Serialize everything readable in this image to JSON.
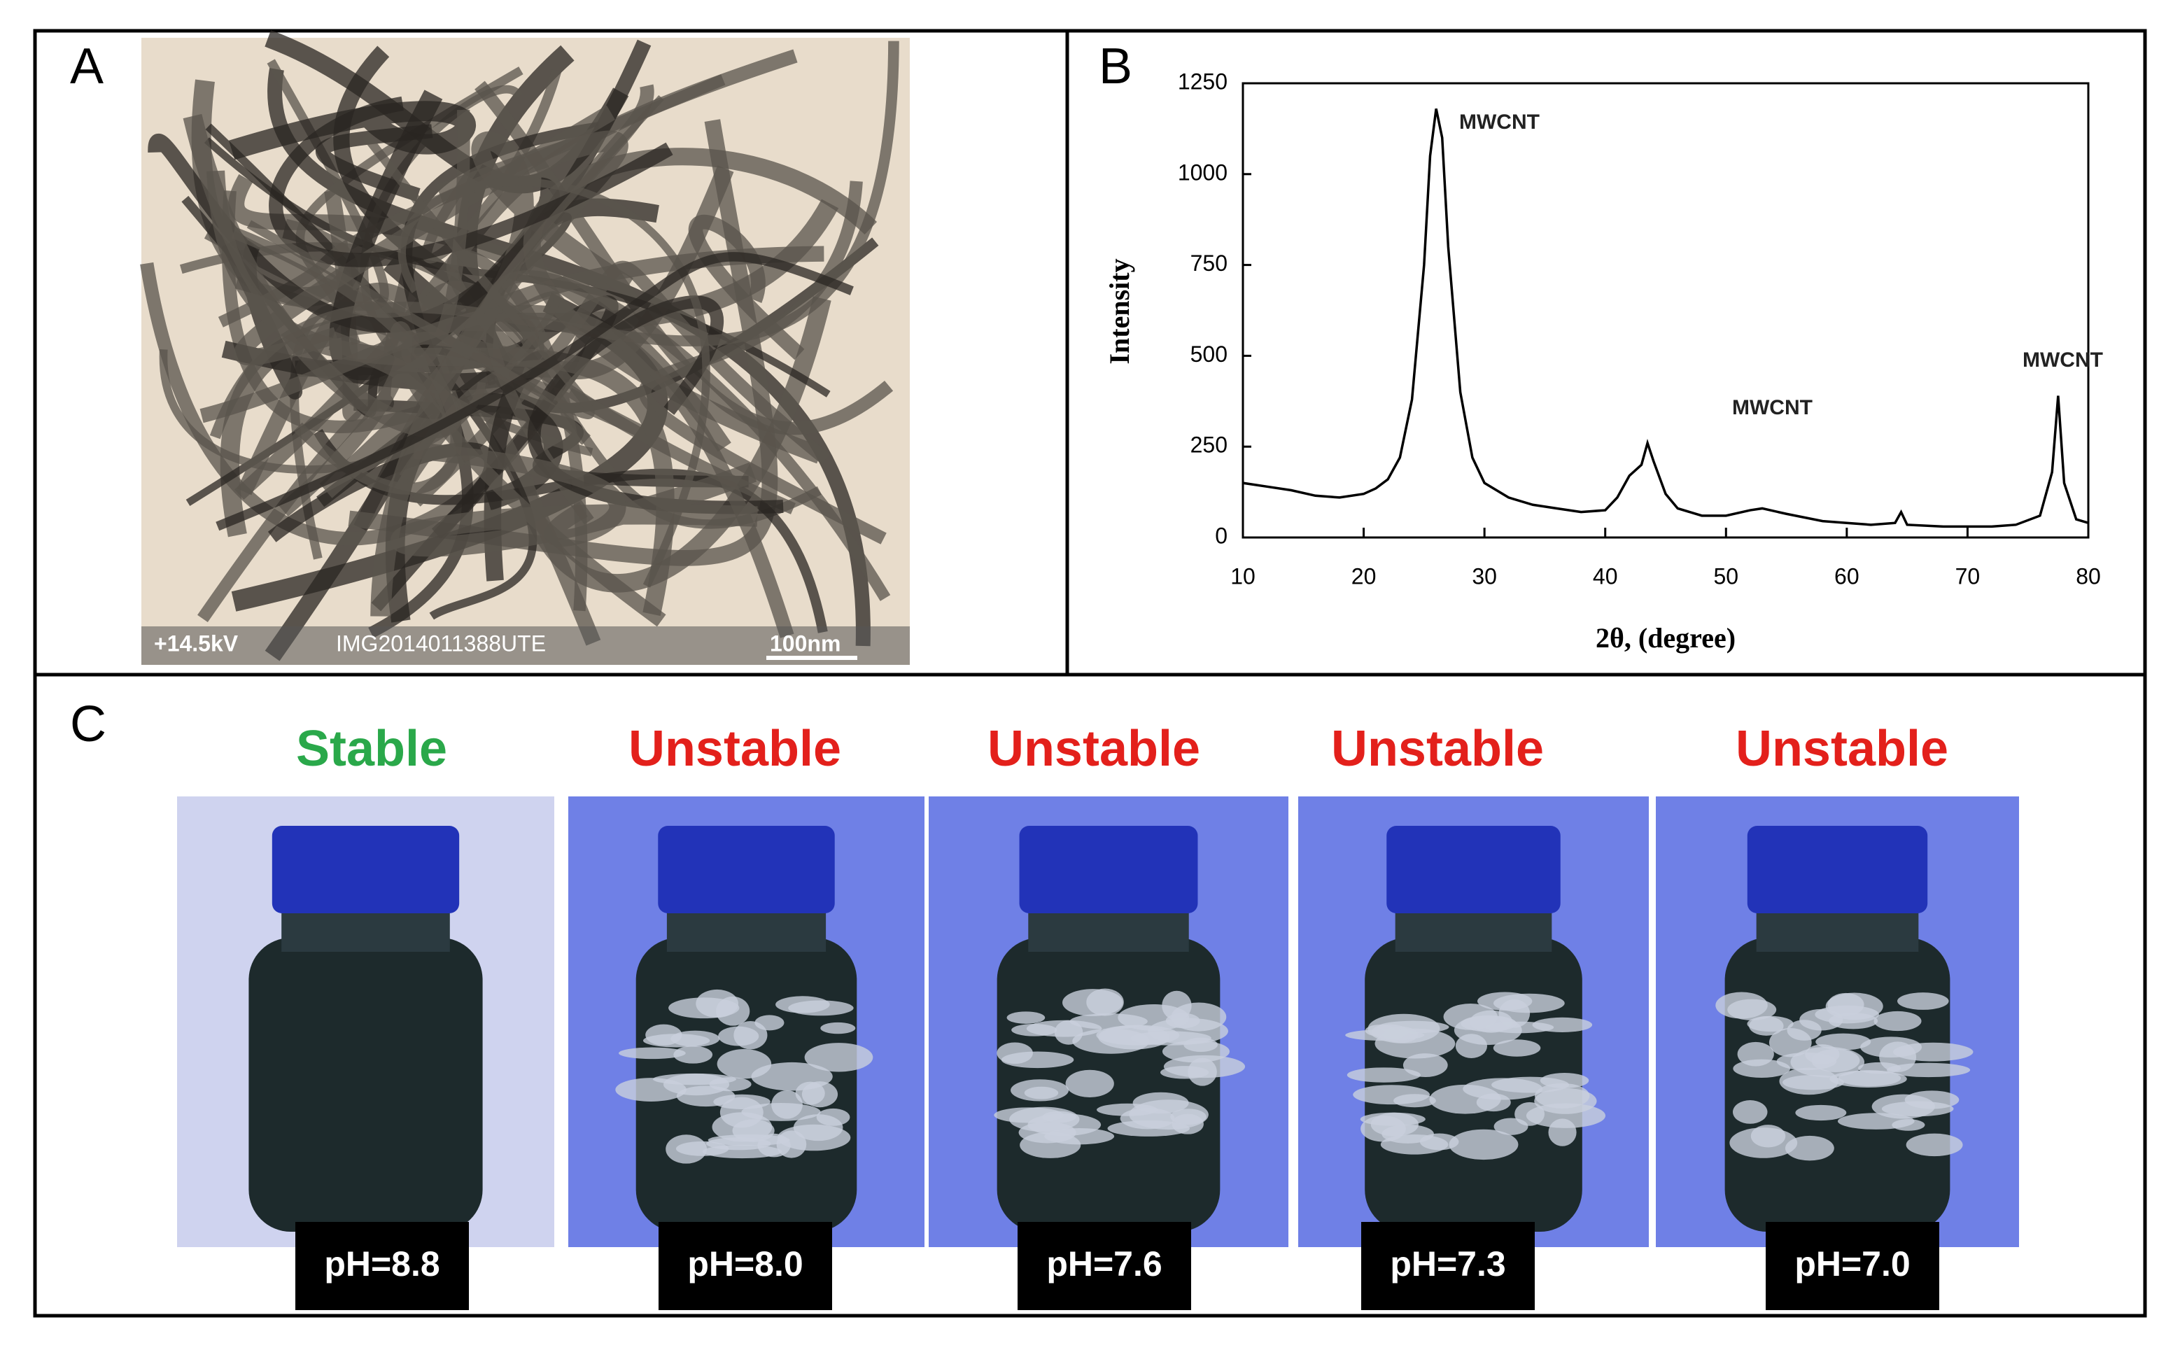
{
  "panel_a": {
    "label": "A",
    "image_texts": [
      "+14.5kV",
      "IMG2014011388UTE",
      "100nm"
    ]
  },
  "chart_data": {
    "type": "line",
    "label": "B",
    "x_label": "2θ, (degree)",
    "y_label": "Intensity",
    "x": [
      10,
      12,
      14,
      16,
      18,
      20,
      21,
      22,
      23,
      24,
      25,
      25.5,
      26,
      26.5,
      27,
      28,
      29,
      30,
      32,
      34,
      36,
      38,
      40,
      41,
      42,
      43,
      43.5,
      44,
      45,
      46,
      48,
      50,
      52,
      53,
      55,
      58,
      60,
      62,
      64,
      64.5,
      65,
      68,
      70,
      72,
      74,
      76,
      77,
      77.5,
      78,
      79,
      80
    ],
    "values": [
      150,
      140,
      130,
      115,
      110,
      120,
      135,
      160,
      220,
      380,
      750,
      1050,
      1180,
      1100,
      800,
      400,
      220,
      150,
      110,
      90,
      80,
      70,
      75,
      110,
      170,
      200,
      260,
      210,
      120,
      80,
      60,
      60,
      75,
      80,
      65,
      45,
      40,
      35,
      40,
      70,
      35,
      30,
      30,
      30,
      35,
      60,
      180,
      390,
      150,
      50,
      40
    ],
    "color": "#000000",
    "xlim": [
      10,
      80
    ],
    "ylim": [
      0,
      1250
    ],
    "xticks": [
      10,
      20,
      30,
      40,
      50,
      60,
      70,
      80
    ],
    "yticks": [
      0,
      250,
      500,
      750,
      1000,
      1250
    ],
    "annotations": [
      "MWCNT",
      "MWCNT",
      "MWCNT"
    ]
  },
  "panel_c": {
    "label": "C",
    "samples": [
      {
        "status": "Stable",
        "color": "#2aa84a",
        "ph": "pH=8.8"
      },
      {
        "status": "Unstable",
        "color": "#e3201b",
        "ph": "pH=8.0"
      },
      {
        "status": "Unstable",
        "color": "#e3201b",
        "ph": "pH=7.6"
      },
      {
        "status": "Unstable",
        "color": "#e3201b",
        "ph": "pH=7.3"
      },
      {
        "status": "Unstable",
        "color": "#e3201b",
        "ph": "pH=7.0"
      }
    ]
  }
}
